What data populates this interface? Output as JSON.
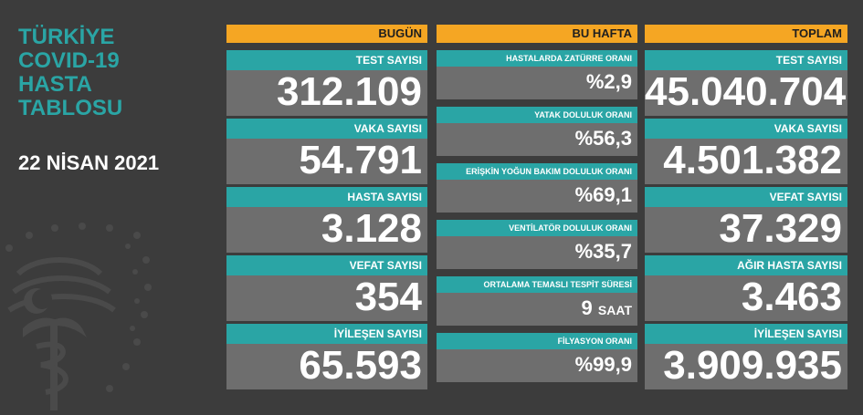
{
  "title_lines": [
    "TÜRKİYE",
    "COVID-19",
    "HASTA",
    "TABLOSU"
  ],
  "date": "22 NİSAN 2021",
  "today": {
    "header": "BUGÜN",
    "items": [
      {
        "label": "TEST SAYISI",
        "value": "312.109"
      },
      {
        "label": "VAKA SAYISI",
        "value": "54.791"
      },
      {
        "label": "HASTA SAYISI",
        "value": "3.128"
      },
      {
        "label": "VEFAT SAYISI",
        "value": "354"
      },
      {
        "label": "İYİLEŞEN SAYISI",
        "value": "65.593"
      }
    ]
  },
  "week": {
    "header": "BU HAFTA",
    "items": [
      {
        "label": "HASTALARDA ZATÜRRE ORANI",
        "value": "%2,9"
      },
      {
        "label": "YATAK DOLULUK ORANI",
        "value": "%56,3"
      },
      {
        "label": "ERİŞKİN YOĞUN BAKIM DOLULUK ORANI",
        "value": "%69,1"
      },
      {
        "label": "VENTİLATÖR DOLULUK ORANI",
        "value": "%35,7"
      },
      {
        "label": "ORTALAMA TEMASLI TESPİT SÜRESİ",
        "value": "9",
        "unit": "SAAT"
      },
      {
        "label": "FİLYASYON ORANI",
        "value": "%99,9"
      }
    ]
  },
  "total": {
    "header": "TOPLAM",
    "items": [
      {
        "label": "TEST SAYISI",
        "value": "45.040.704"
      },
      {
        "label": "VAKA SAYISI",
        "value": "4.501.382"
      },
      {
        "label": "VEFAT SAYISI",
        "value": "37.329"
      },
      {
        "label": "AĞIR HASTA SAYISI",
        "value": "3.463"
      },
      {
        "label": "İYİLEŞEN SAYISI",
        "value": "3.909.935"
      }
    ]
  },
  "colors": {
    "background": "#3c3c3c",
    "header": "#f5a623",
    "label_bar": "#2aa5a5",
    "value_box": "#6e6e6e",
    "title": "#2aa5a5"
  },
  "icons": {
    "emblem": "ministry-of-health-emblem-icon"
  }
}
